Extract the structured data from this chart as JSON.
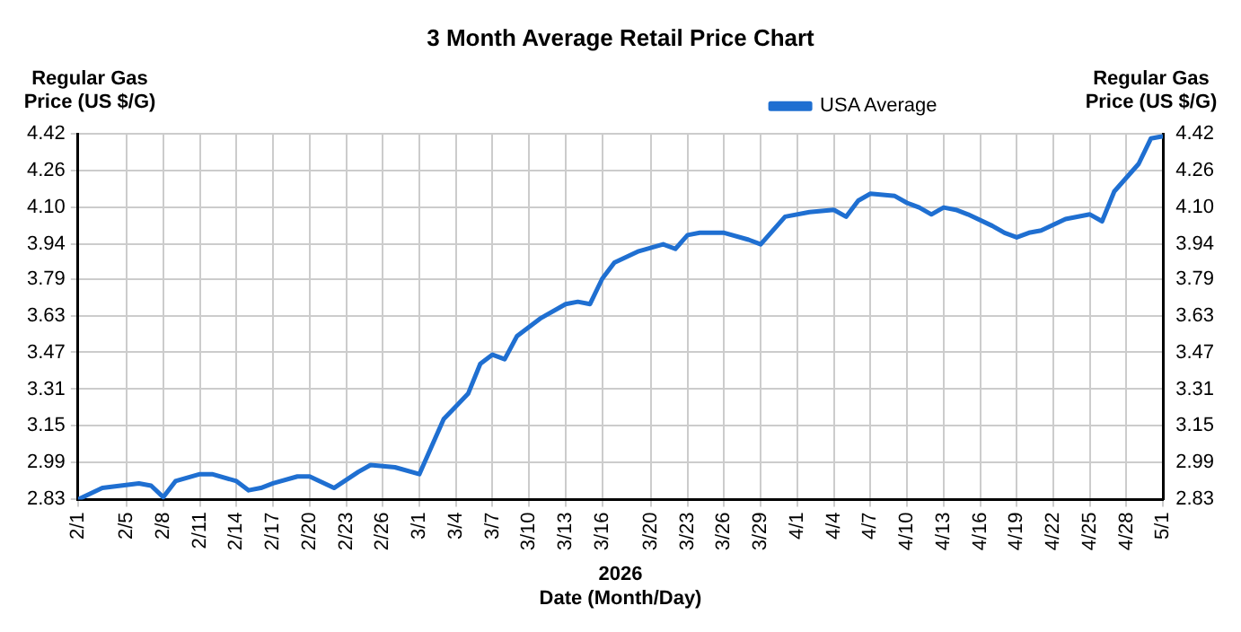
{
  "chart_data": {
    "type": "line",
    "title": "3 Month Average Retail Price Chart",
    "xlabel": "Date (Month/Day)",
    "ylabel": "Regular Gas Price (US $/G)",
    "y2label": "Regular Gas Price (US $/G)",
    "annotations": [
      "2026"
    ],
    "x": [
      "2026-02-01",
      "2026-02-03",
      "2026-02-06",
      "2026-02-07",
      "2026-02-08",
      "2026-02-09",
      "2026-02-11",
      "2026-02-12",
      "2026-02-14",
      "2026-02-15",
      "2026-02-16",
      "2026-02-17",
      "2026-02-19",
      "2026-02-20",
      "2026-02-22",
      "2026-02-24",
      "2026-02-25",
      "2026-02-27",
      "2026-03-01",
      "2026-03-03",
      "2026-03-05",
      "2026-03-06",
      "2026-03-07",
      "2026-03-08",
      "2026-03-09",
      "2026-03-10",
      "2026-03-11",
      "2026-03-13",
      "2026-03-14",
      "2026-03-15",
      "2026-03-16",
      "2026-03-17",
      "2026-03-19",
      "2026-03-21",
      "2026-03-22",
      "2026-03-23",
      "2026-03-24",
      "2026-03-26",
      "2026-03-28",
      "2026-03-29",
      "2026-03-31",
      "2026-04-02",
      "2026-04-04",
      "2026-04-05",
      "2026-04-06",
      "2026-04-07",
      "2026-04-09",
      "2026-04-10",
      "2026-04-11",
      "2026-04-12",
      "2026-04-13",
      "2026-04-14",
      "2026-04-15",
      "2026-04-17",
      "2026-04-18",
      "2026-04-19",
      "2026-04-20",
      "2026-04-21",
      "2026-04-23",
      "2026-04-25",
      "2026-04-26",
      "2026-04-27",
      "2026-04-29",
      "2026-04-30",
      "2026-05-01"
    ],
    "series": [
      {
        "name": "USA Average",
        "color": "#1f6fd1",
        "values": [
          2.83,
          2.88,
          2.9,
          2.89,
          2.84,
          2.91,
          2.94,
          2.94,
          2.91,
          2.87,
          2.88,
          2.9,
          2.93,
          2.93,
          2.88,
          2.95,
          2.98,
          2.97,
          2.94,
          3.18,
          3.29,
          3.42,
          3.46,
          3.44,
          3.54,
          3.58,
          3.62,
          3.68,
          3.69,
          3.68,
          3.79,
          3.86,
          3.91,
          3.94,
          3.92,
          3.98,
          3.99,
          3.99,
          3.96,
          3.94,
          4.06,
          4.08,
          4.09,
          4.06,
          4.13,
          4.16,
          4.15,
          4.12,
          4.1,
          4.07,
          4.1,
          4.09,
          4.07,
          4.02,
          3.99,
          3.97,
          3.99,
          4.0,
          4.05,
          4.07,
          4.04,
          4.17,
          4.29,
          4.4,
          4.41
        ]
      }
    ],
    "xlim": [
      "2026-02-01",
      "2026-05-01"
    ],
    "xticks": [
      {
        "value": "2026-02-01",
        "label": "2/1"
      },
      {
        "value": "2026-02-05",
        "label": "2/5"
      },
      {
        "value": "2026-02-08",
        "label": "2/8"
      },
      {
        "value": "2026-02-11",
        "label": "2/11"
      },
      {
        "value": "2026-02-14",
        "label": "2/14"
      },
      {
        "value": "2026-02-17",
        "label": "2/17"
      },
      {
        "value": "2026-02-20",
        "label": "2/20"
      },
      {
        "value": "2026-02-23",
        "label": "2/23"
      },
      {
        "value": "2026-02-26",
        "label": "2/26"
      },
      {
        "value": "2026-03-01",
        "label": "3/1"
      },
      {
        "value": "2026-03-04",
        "label": "3/4"
      },
      {
        "value": "2026-03-07",
        "label": "3/7"
      },
      {
        "value": "2026-03-10",
        "label": "3/10"
      },
      {
        "value": "2026-03-13",
        "label": "3/13"
      },
      {
        "value": "2026-03-16",
        "label": "3/16"
      },
      {
        "value": "2026-03-20",
        "label": "3/20"
      },
      {
        "value": "2026-03-23",
        "label": "3/23"
      },
      {
        "value": "2026-03-26",
        "label": "3/26"
      },
      {
        "value": "2026-03-29",
        "label": "3/29"
      },
      {
        "value": "2026-04-01",
        "label": "4/1"
      },
      {
        "value": "2026-04-04",
        "label": "4/4"
      },
      {
        "value": "2026-04-07",
        "label": "4/7"
      },
      {
        "value": "2026-04-10",
        "label": "4/10"
      },
      {
        "value": "2026-04-13",
        "label": "4/13"
      },
      {
        "value": "2026-04-16",
        "label": "4/16"
      },
      {
        "value": "2026-04-19",
        "label": "4/19"
      },
      {
        "value": "2026-04-22",
        "label": "4/22"
      },
      {
        "value": "2026-04-25",
        "label": "4/25"
      },
      {
        "value": "2026-04-28",
        "label": "4/28"
      },
      {
        "value": "2026-05-01",
        "label": "5/1"
      }
    ],
    "ylim": [
      2.83,
      4.42
    ],
    "yticks": [
      2.83,
      2.99,
      3.15,
      3.31,
      3.47,
      3.63,
      3.79,
      3.94,
      {
        "value": 4.1,
        "label": "4.10"
      },
      4.26,
      4.42
    ],
    "y2lim": [
      2.83,
      4.42
    ],
    "y2ticks": [
      2.83,
      2.99,
      3.15,
      3.31,
      3.47,
      3.63,
      3.79,
      3.94,
      {
        "value": 4.1,
        "label": "4.10"
      },
      4.26,
      4.42
    ],
    "grid": true,
    "legend": "top right",
    "marker": "none",
    "line_style": "solid"
  }
}
